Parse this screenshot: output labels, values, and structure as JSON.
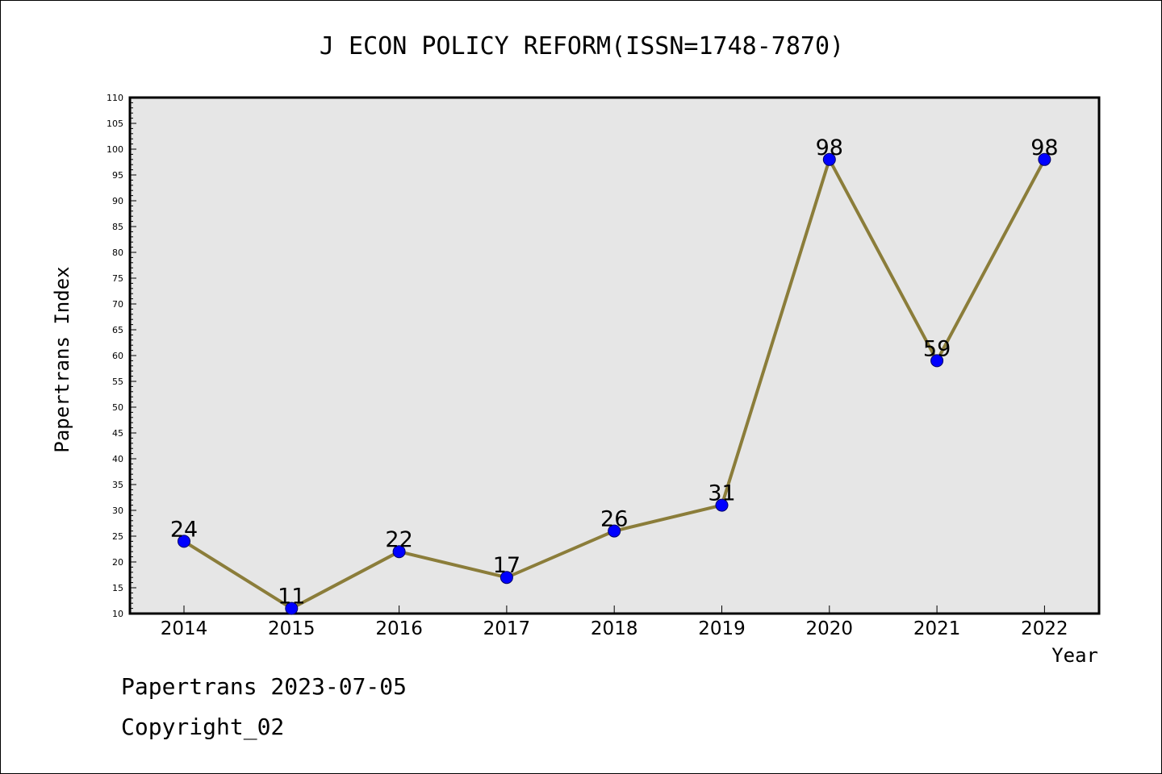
{
  "colors": {
    "background": "#ffffff",
    "plot_background": "#e6e6e6",
    "line": "#8b7d3a",
    "marker_fill": "#0000ff",
    "marker_stroke": "#000066",
    "text": "#000000"
  },
  "footer": {
    "credit": "Papertrans 2023-07-05",
    "copyright": "Copyright_02"
  },
  "chart_data": {
    "type": "line",
    "title": "J ECON POLICY REFORM(ISSN=1748-7870)",
    "xlabel": "Year",
    "ylabel": "Papertrans Index",
    "categories": [
      "2014",
      "2015",
      "2016",
      "2017",
      "2018",
      "2019",
      "2020",
      "2021",
      "2022"
    ],
    "values": [
      24,
      11,
      22,
      17,
      26,
      31,
      98,
      59,
      98
    ],
    "data_labels": [
      "24",
      "11",
      "22",
      "17",
      "26",
      "31",
      "98",
      "59",
      "98"
    ],
    "ylim": [
      10,
      110
    ],
    "y_major_step": 5,
    "y_minor_step": 1,
    "y_ticks": [
      "10",
      "15",
      "20",
      "25",
      "30",
      "35",
      "40",
      "45",
      "50",
      "55",
      "60",
      "65",
      "70",
      "75",
      "80",
      "85",
      "90",
      "95",
      "100",
      "105",
      "110"
    ],
    "grid": false,
    "legend": "none",
    "marker": "circle"
  }
}
